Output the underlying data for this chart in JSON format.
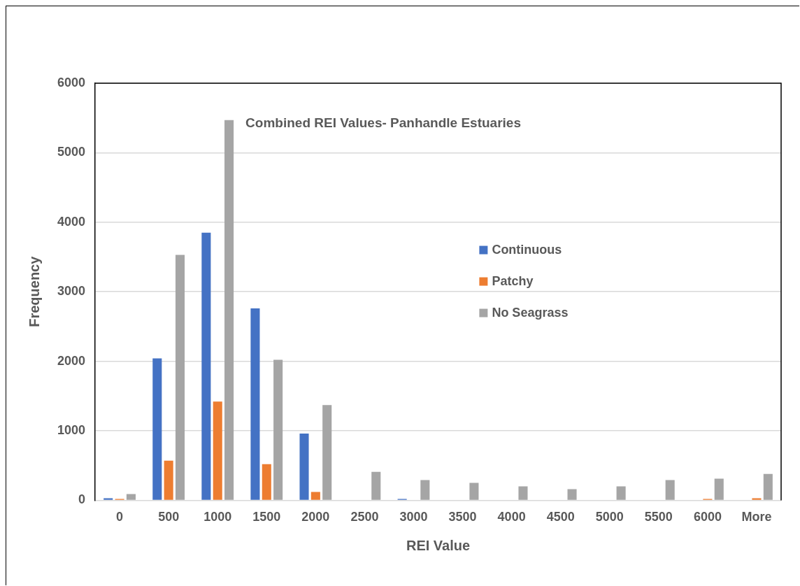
{
  "chart_data": {
    "type": "bar",
    "title": "Combined REI Values- Panhandle Estuaries",
    "xlabel": "REI Value",
    "ylabel": "Frequency",
    "categories": [
      "0",
      "500",
      "1000",
      "1500",
      "2000",
      "2500",
      "3000",
      "3500",
      "4000",
      "4500",
      "5000",
      "5500",
      "6000",
      "More"
    ],
    "series": [
      {
        "name": "Continuous",
        "color": "#4472c4",
        "values": [
          30,
          2040,
          3850,
          2760,
          960,
          0,
          20,
          0,
          0,
          0,
          0,
          0,
          0,
          0
        ]
      },
      {
        "name": "Patchy",
        "color": "#ed7d31",
        "values": [
          20,
          570,
          1420,
          520,
          120,
          0,
          0,
          0,
          0,
          0,
          0,
          0,
          20,
          30
        ]
      },
      {
        "name": "No Seagrass",
        "color": "#a5a5a5",
        "values": [
          90,
          3530,
          5470,
          2020,
          1370,
          410,
          290,
          250,
          200,
          160,
          200,
          290,
          310,
          380
        ]
      }
    ],
    "ylim": [
      0,
      6000
    ],
    "yticks": [
      0,
      1000,
      2000,
      3000,
      4000,
      5000,
      6000
    ],
    "grid": "y",
    "legend": "center"
  }
}
